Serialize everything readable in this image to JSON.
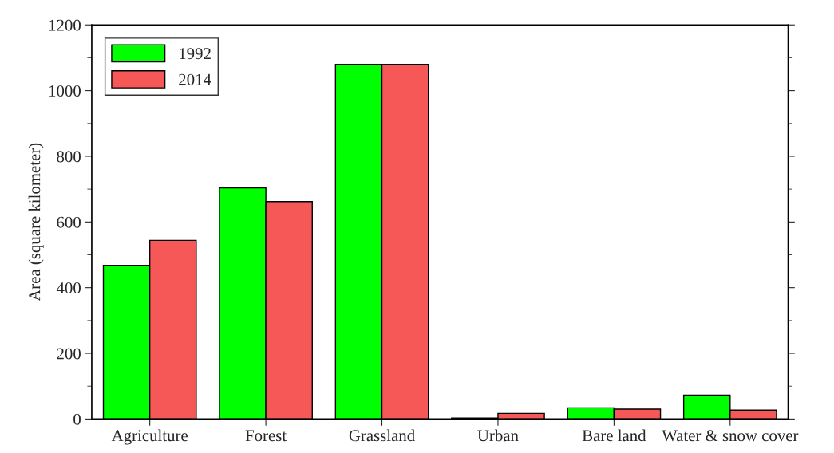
{
  "chart_data": {
    "type": "bar",
    "ylabel": "Area (square kilometer)",
    "categories": [
      "Agriculture",
      "Forest",
      "Grassland",
      "Urban",
      "Bare land",
      "Water & snow cover"
    ],
    "series": [
      {
        "name": "1992",
        "color": "#00ff00",
        "values": [
          468,
          704,
          1080,
          3,
          34,
          73
        ]
      },
      {
        "name": "2014",
        "color": "#f65858",
        "values": [
          544,
          662,
          1080,
          17,
          30,
          27
        ]
      }
    ],
    "ylim": [
      0,
      1200
    ],
    "yticks": [
      0,
      200,
      400,
      600,
      800,
      1000,
      1200
    ],
    "grid": false,
    "legend": "top left"
  }
}
